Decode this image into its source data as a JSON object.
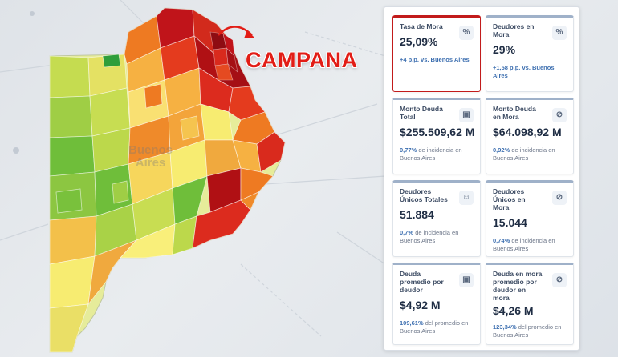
{
  "map": {
    "highlight_label": "CAMPANA",
    "watermark_line1": "Buenos",
    "watermark_line2": "Aires"
  },
  "colors": {
    "dark_red": "#b01014",
    "red": "#dc2b1e",
    "orange": "#ee7a22",
    "light_orange": "#f6b142",
    "yellow": "#f7ec71",
    "light_green": "#bcd84b",
    "green": "#6fbe3a",
    "card_highlight_border": "#c21b1b",
    "accent_blue": "#3d6fb0"
  },
  "cards": [
    {
      "id": "tasa-mora",
      "title": "Tasa de Mora",
      "icon": "percent-icon",
      "icon_glyph": "%",
      "value": "25,09%",
      "note_highlight": "+4 p.p. vs. Buenos Aires",
      "note_rest": ""
    },
    {
      "id": "deudores-mora",
      "title": "Deudores en Mora",
      "icon": "percent-icon",
      "icon_glyph": "%",
      "value": "29%",
      "note_highlight": "+1,58 p.p. vs. Buenos Aires",
      "note_rest": ""
    },
    {
      "id": "monto-deuda-total",
      "title": "Monto Deuda Total",
      "icon": "banknote-icon",
      "icon_glyph": "▣",
      "value": "$255.509,62 M",
      "note_highlight": "0,77%",
      "note_rest": " de incidencia en Buenos Aires"
    },
    {
      "id": "monto-deuda-mora",
      "title": "Monto Deuda en Mora",
      "icon": "money-off-icon",
      "icon_glyph": "⊘",
      "value": "$64.098,92 M",
      "note_highlight": "0,92%",
      "note_rest": " de incidencia en Buenos Aires"
    },
    {
      "id": "deudores-unicos-totales",
      "title": "Deudores Únicos Totales",
      "icon": "users-icon",
      "icon_glyph": "☺",
      "value": "51.884",
      "note_highlight": "0,7%",
      "note_rest": " de incidencia en Buenos Aires"
    },
    {
      "id": "deudores-unicos-mora",
      "title": "Deudores Únicos en Mora",
      "icon": "user-off-icon",
      "icon_glyph": "⊘",
      "value": "15.044",
      "note_highlight": "0,74%",
      "note_rest": " de incidencia en Buenos Aires"
    },
    {
      "id": "deuda-promedio",
      "title": "Deuda promedio por deudor",
      "icon": "banknote-icon",
      "icon_glyph": "▣",
      "value": "$4,92 M",
      "note_highlight": "109,61%",
      "note_rest": " del promedio en Buenos Aires"
    },
    {
      "id": "deuda-mora-promedio",
      "title": "Deuda en mora promedio por deudor en mora",
      "icon": "money-off-icon",
      "icon_glyph": "⊘",
      "value": "$4,26 M",
      "note_highlight": "123,34%",
      "note_rest": " del promedio en Buenos Aires"
    }
  ]
}
